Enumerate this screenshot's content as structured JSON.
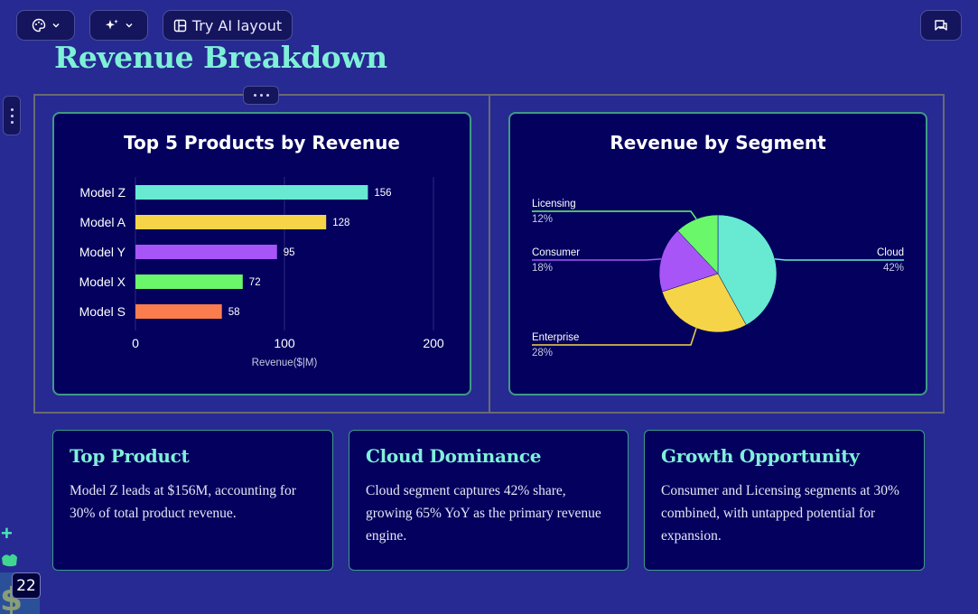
{
  "toolbar": {
    "theme_icon": "palette-icon",
    "ai_icon": "sparkles-icon",
    "ai_layout_label": "Try AI layout",
    "comment_icon": "comment-icon"
  },
  "page": {
    "title": "Revenue Breakdown"
  },
  "colors": {
    "background": "#272a92",
    "card": "#03005e",
    "accent": "#7ff0d8",
    "teal": "#67ead1",
    "yellow": "#f5d547",
    "purple": "#a855f7",
    "green": "#6af76a",
    "orange": "#fb7d4e"
  },
  "chart_data": [
    {
      "type": "bar",
      "orientation": "horizontal",
      "title": "Top 5 Products by Revenue",
      "categories": [
        "Model Z",
        "Model A",
        "Model Y",
        "Model X",
        "Model S"
      ],
      "values": [
        156,
        128,
        95,
        72,
        58
      ],
      "colors": [
        "#67ead1",
        "#f5d547",
        "#a855f7",
        "#6af76a",
        "#fb7d4e"
      ],
      "xlabel": "Revenue($|M)",
      "ylabel": "",
      "xlim": [
        0,
        200
      ],
      "xticks": [
        "0",
        "100",
        "200"
      ],
      "grid": true
    },
    {
      "type": "pie",
      "title": "Revenue by Segment",
      "labels": [
        "Cloud",
        "Enterprise",
        "Consumer",
        "Licensing"
      ],
      "values": [
        42,
        28,
        18,
        12
      ],
      "percent_labels": [
        "42%",
        "28%",
        "18%",
        "12%"
      ],
      "colors": [
        "#67ead1",
        "#f5d547",
        "#a855f7",
        "#6af76a"
      ]
    }
  ],
  "cards": [
    {
      "title": "Top Product",
      "body": "Model Z leads at $156M, accounting for 30% of total product revenue."
    },
    {
      "title": "Cloud Dominance",
      "body": "Cloud segment captures 42% share, growing 65% YoY as the primary revenue engine."
    },
    {
      "title": "Growth Opportunity",
      "body": "Consumer and Licensing segments at 30% combined, with untapped potential for expansion."
    }
  ],
  "badge": {
    "count": "22"
  },
  "add_icon": "plus-icon"
}
